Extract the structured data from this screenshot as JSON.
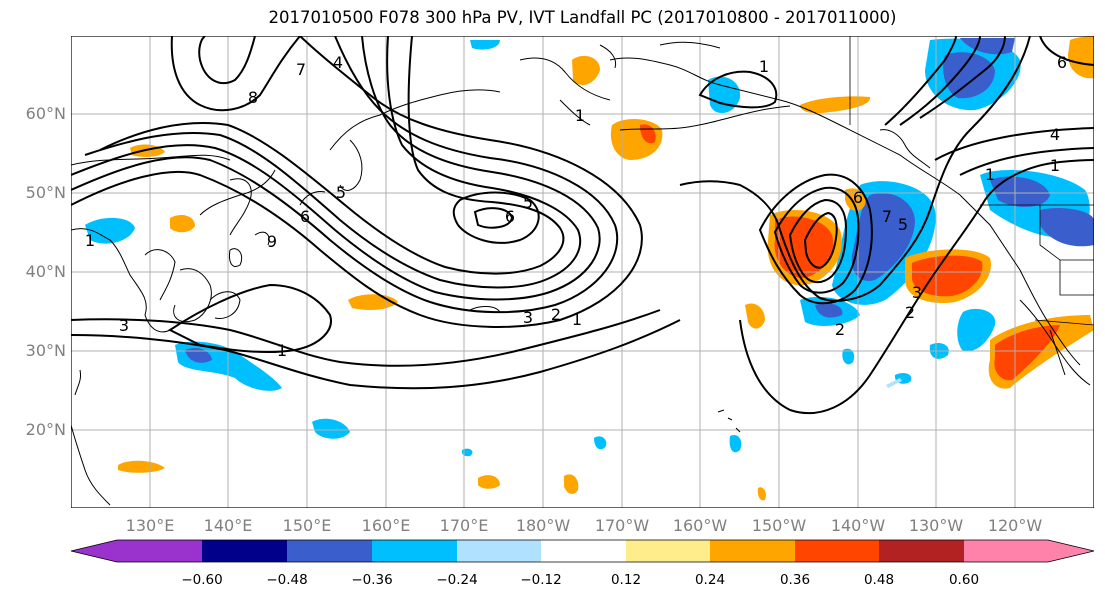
{
  "title": "2017010500 F078 300 hPa PV, IVT Landfall PC (2017010800 - 2017011000)",
  "map": {
    "lat_ticks": [
      "60°N",
      "50°N",
      "40°N",
      "30°N",
      "20°N"
    ],
    "lon_ticks": [
      "130°E",
      "140°E",
      "150°E",
      "160°E",
      "170°E",
      "180°W",
      "170°W",
      "160°W",
      "150°W",
      "140°W",
      "130°W",
      "120°W"
    ],
    "contour_labels": [
      "8",
      "7",
      "4",
      "5",
      "6",
      "9",
      "6",
      "5",
      "1",
      "3",
      "2",
      "1",
      "1",
      "1",
      "1",
      "6",
      "4",
      "1",
      "5",
      "6",
      "7",
      "2",
      "3",
      "2",
      "1",
      "3"
    ],
    "land_color": "#ffffff",
    "contour_color": "#000000",
    "grid_color": "#b0b0b0"
  },
  "colorbar": {
    "colors": [
      "#9a32cd",
      "#00008b",
      "#3a5fcd",
      "#00bfff",
      "#b0e2ff",
      "#ffffff",
      "#ffec8b",
      "#ffa500",
      "#ff4500",
      "#b22222",
      "#ff82ab"
    ],
    "tick_labels": [
      "−0.60",
      "−0.48",
      "−0.36",
      "−0.24",
      "−0.12",
      "0.12",
      "0.24",
      "0.36",
      "0.48",
      "0.60"
    ]
  }
}
